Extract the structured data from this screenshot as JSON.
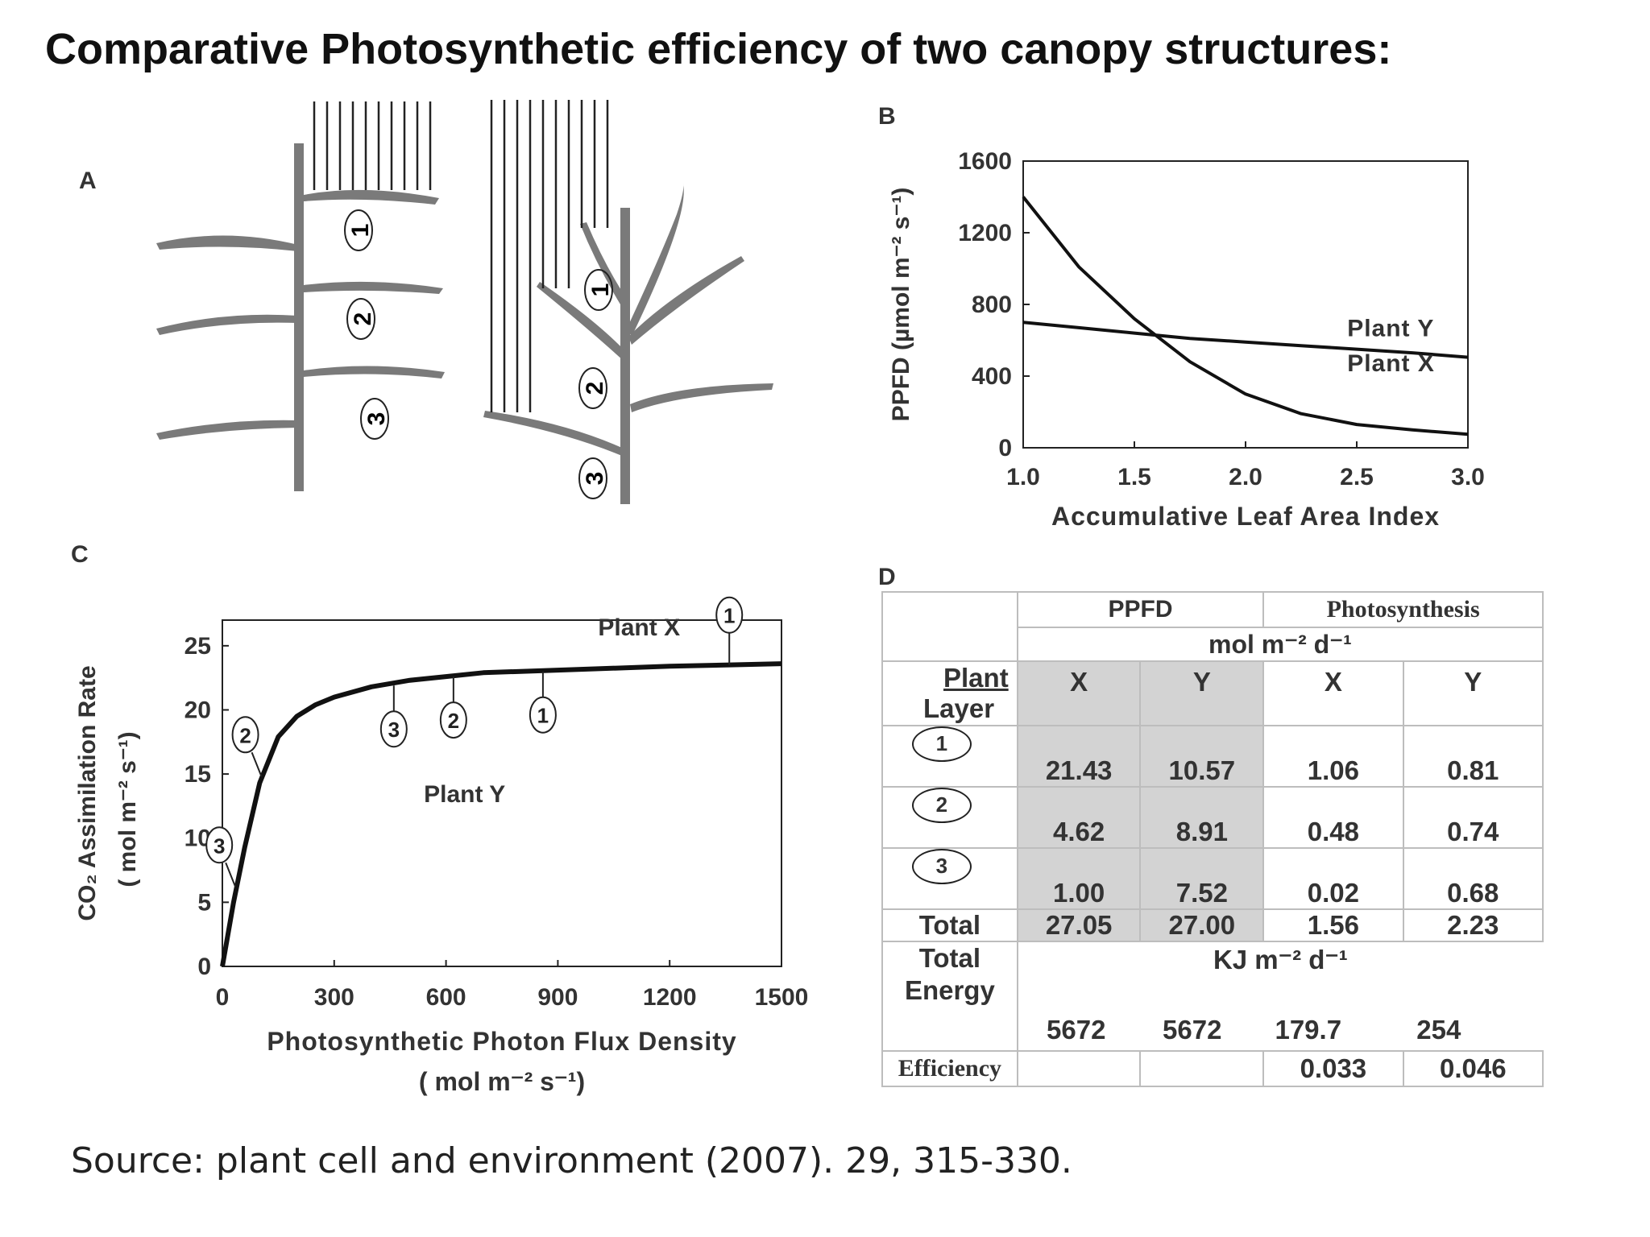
{
  "title": "Comparative Photosynthetic efficiency of two canopy structures:",
  "source": "Source: plant cell and environment (2007).  29, 315-330.",
  "panels": {
    "a": "A",
    "b": "B",
    "c": "C",
    "d": "D"
  },
  "diagram_a": {
    "layers": [
      "1",
      "2",
      "3"
    ]
  },
  "colors": {
    "line": "#111111",
    "axis": "#222222",
    "leaf": "#7a7a7a",
    "shade": "#d3d3d3"
  },
  "chart_data": [
    {
      "type": "line",
      "id": "B",
      "xlabel": "Accumulative  Leaf  Area  Index",
      "ylabel": "PPFD  (µmol  m⁻² s⁻¹)",
      "xlim": [
        1.0,
        3.0
      ],
      "ylim": [
        0,
        1600
      ],
      "xticks": [
        "1.0",
        "1.5",
        "2.0",
        "2.5",
        "3.0"
      ],
      "yticks": [
        "0",
        "400",
        "800",
        "1200",
        "1600"
      ],
      "series": [
        {
          "name": "Plant  Y",
          "x": [
            1.0,
            1.25,
            1.5,
            1.75,
            2.0,
            2.25,
            2.5,
            2.75,
            3.0
          ],
          "y": [
            700,
            670,
            640,
            610,
            590,
            570,
            550,
            530,
            505
          ]
        },
        {
          "name": "Plant  X",
          "x": [
            1.0,
            1.25,
            1.5,
            1.75,
            2.0,
            2.25,
            2.5,
            2.75,
            3.0
          ],
          "y": [
            1400,
            1010,
            720,
            480,
            300,
            190,
            130,
            100,
            75
          ]
        }
      ]
    },
    {
      "type": "line",
      "id": "C",
      "xlabel": "Photosynthetic  Photon  Flux  Density",
      "xlabel2": "(  mol  m⁻² s⁻¹)",
      "ylabel": "CO₂ Assimilation Rate",
      "ylabel2": "( mol  m⁻² s⁻¹)",
      "xlim": [
        0,
        1500
      ],
      "ylim": [
        0,
        27
      ],
      "xticks": [
        "0",
        "300",
        "600",
        "900",
        "1200",
        "1500"
      ],
      "yticks": [
        "0",
        "5",
        "10",
        "15",
        "20",
        "25"
      ],
      "series": [
        {
          "name": "Plant  X / Plant  Y",
          "x": [
            0,
            30,
            60,
            100,
            150,
            200,
            250,
            300,
            400,
            500,
            600,
            700,
            800,
            900,
            1000,
            1200,
            1350,
            1500
          ],
          "y": [
            0,
            5.0,
            9.3,
            14.3,
            17.9,
            19.5,
            20.4,
            21.0,
            21.8,
            22.3,
            22.6,
            22.9,
            23.0,
            23.1,
            23.2,
            23.4,
            23.5,
            23.6
          ]
        }
      ],
      "annotations": [
        {
          "text": "Plant  X",
          "x": 1118,
          "y": 25.8
        },
        {
          "text": "Plant  Y",
          "x": 650,
          "y": 12.8
        }
      ],
      "markers": [
        {
          "label": "1",
          "group": "X",
          "x": 1360,
          "y": 23.5
        },
        {
          "label": "2",
          "group": "Y",
          "x": 105,
          "y": 14.8
        },
        {
          "label": "3",
          "group": "Y",
          "x": 35,
          "y": 6.2
        },
        {
          "label": "3",
          "group": "X",
          "x": 460,
          "y": 21.9
        },
        {
          "label": "2",
          "group": "X",
          "x": 620,
          "y": 22.6
        },
        {
          "label": "1",
          "group": "X",
          "x": 860,
          "y": 23.0
        }
      ]
    },
    {
      "type": "table",
      "id": "D",
      "head": {
        "ppfd": "PPFD",
        "photosynthesis": "Photosynthesis",
        "units": "mol  m⁻² d⁻¹",
        "plant": "Plant",
        "layer": "Layer",
        "x": "X",
        "y": "Y"
      },
      "rows": [
        {
          "layer": "1",
          "ppfd_x": "21.43",
          "ppfd_y": "10.57",
          "ps_x": "1.06",
          "ps_y": "0.81"
        },
        {
          "layer": "2",
          "ppfd_x": "4.62",
          "ppfd_y": "8.91",
          "ps_x": "0.48",
          "ps_y": "0.74"
        },
        {
          "layer": "3",
          "ppfd_x": "1.00",
          "ppfd_y": "7.52",
          "ps_x": "0.02",
          "ps_y": "0.68"
        },
        {
          "layer": "Total",
          "ppfd_x": "27.05",
          "ppfd_y": "27.00",
          "ps_x": "1.56",
          "ps_y": "2.23"
        }
      ],
      "energy": {
        "label_1": "Total",
        "label_2": "Energy",
        "units": "KJ  m⁻² d⁻¹",
        "ppfd_x": "5672",
        "ppfd_y": "5672",
        "ps_x": "179.7",
        "ps_y": "254"
      },
      "efficiency": {
        "label": "Efficiency",
        "x": "0.033",
        "y": "0.046"
      }
    }
  ]
}
